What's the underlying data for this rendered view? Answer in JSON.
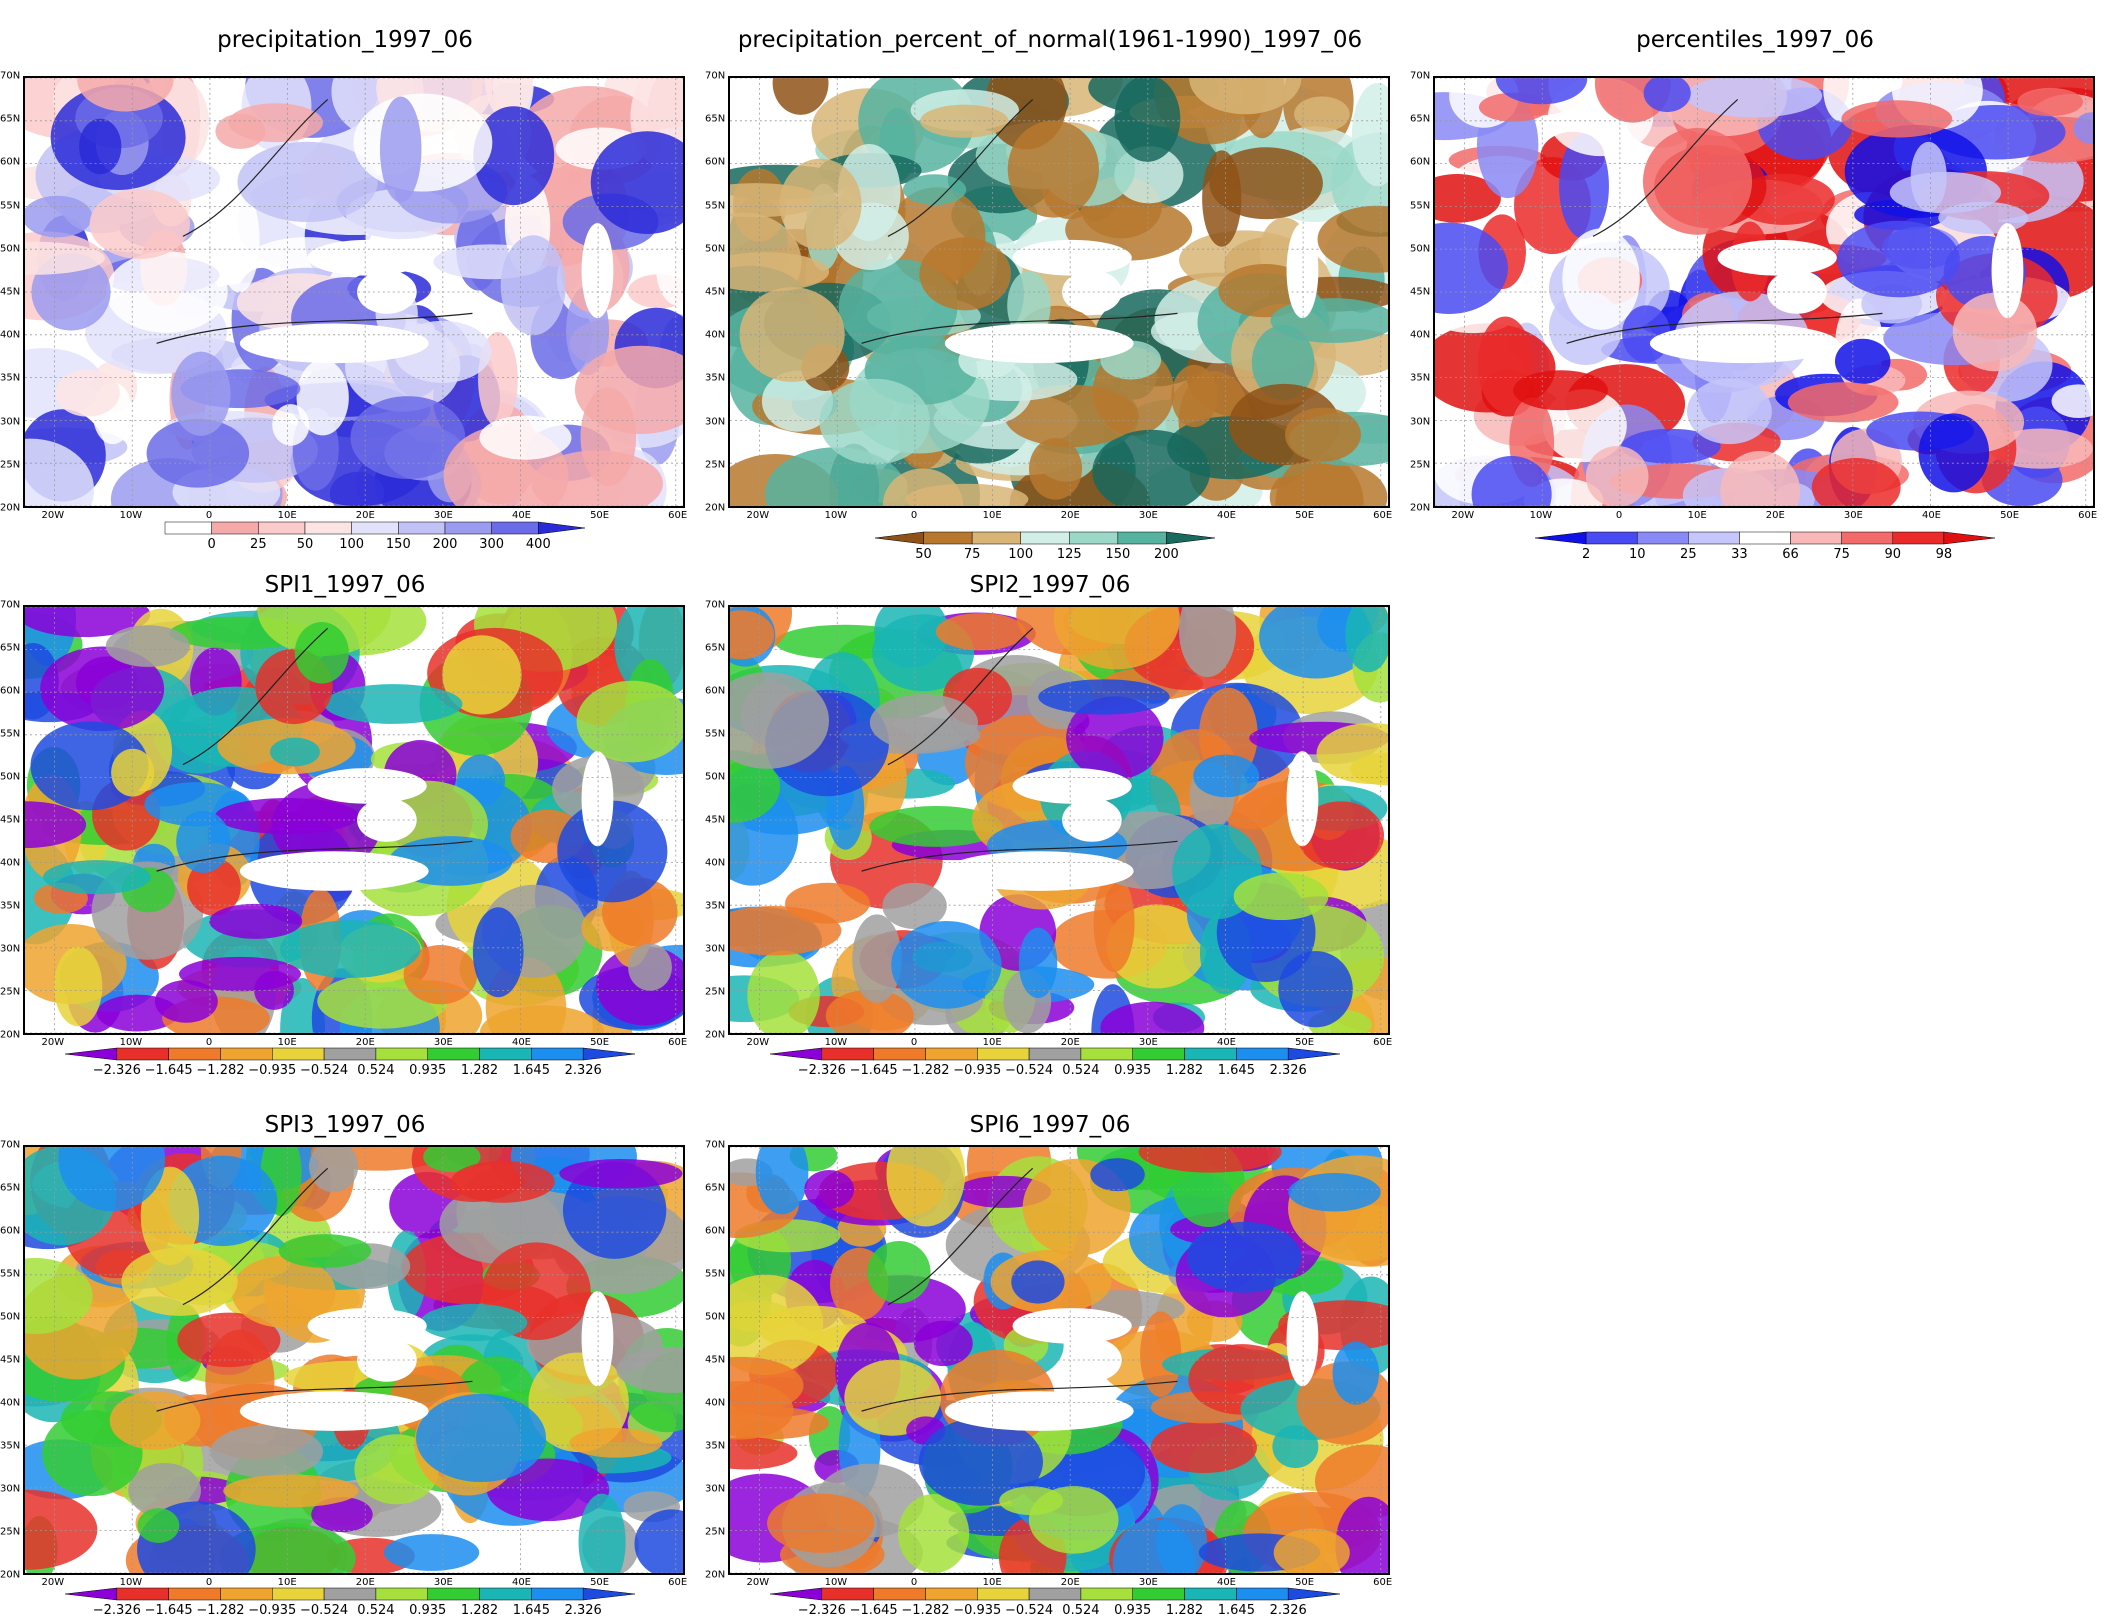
{
  "axes": {
    "lat_labels": [
      "70N",
      "65N",
      "60N",
      "55N",
      "50N",
      "45N",
      "40N",
      "35N",
      "30N",
      "25N",
      "20N"
    ],
    "lon_labels": [
      "20W",
      "10W",
      "0",
      "10E",
      "20E",
      "30E",
      "40E",
      "50E",
      "60E"
    ]
  },
  "palettes": {
    "precip": [
      "#ffffff",
      "#f6a9a9",
      "#fbcaca",
      "#fde4e4",
      "#e2e2fb",
      "#c2c2f6",
      "#9b9bf0",
      "#6b6be8",
      "#2a2ad8"
    ],
    "pct": [
      "#8e5218",
      "#b7782e",
      "#d8b577",
      "#d1efe7",
      "#9bd8c8",
      "#56b3a0",
      "#18695e"
    ],
    "pctile": [
      "#1010e8",
      "#4a4af2",
      "#8a8af6",
      "#c6c6fa",
      "#ffffff",
      "#f8b8b8",
      "#f26a6a",
      "#eb2a2a",
      "#e01010"
    ],
    "spi": [
      "#8b00d8",
      "#e8302a",
      "#ef7a2a",
      "#eea42f",
      "#e8d43a",
      "#a0a0a0",
      "#a6e03c",
      "#33cc33",
      "#1ab5b5",
      "#1c8ef0",
      "#1d4ae0"
    ]
  },
  "panels": [
    {
      "id": "precip",
      "title": "precipitation_1997_06",
      "palette": "precip",
      "legend_labels": [
        "0",
        "25",
        "50",
        "100",
        "150",
        "200",
        "300",
        "400"
      ]
    },
    {
      "id": "pct",
      "title": "precipitation_percent_of_normal(1961-1990)_1997_06",
      "palette": "pct",
      "legend_labels": [
        "50",
        "75",
        "100",
        "125",
        "150",
        "200"
      ]
    },
    {
      "id": "pctile",
      "title": "percentiles_1997_06",
      "palette": "pctile",
      "legend_labels": [
        "2",
        "10",
        "25",
        "33",
        "66",
        "75",
        "90",
        "98"
      ]
    },
    {
      "id": "spi1",
      "title": "SPI1_1997_06",
      "palette": "spi",
      "legend_labels": [
        "−2.326",
        "−1.645",
        "−1.282",
        "−0.935",
        "−0.524",
        "0.524",
        "0.935",
        "1.282",
        "1.645",
        "2.326"
      ]
    },
    {
      "id": "spi2",
      "title": "SPI2_1997_06",
      "palette": "spi",
      "legend_labels": [
        "−2.326",
        "−1.645",
        "−1.282",
        "−0.935",
        "−0.524",
        "0.524",
        "0.935",
        "1.282",
        "1.645",
        "2.326"
      ]
    },
    {
      "id": "spi3",
      "title": "SPI3_1997_06",
      "palette": "spi",
      "legend_labels": [
        "−2.326",
        "−1.645",
        "−1.282",
        "−0.935",
        "−0.524",
        "0.524",
        "0.935",
        "1.282",
        "1.645",
        "2.326"
      ]
    },
    {
      "id": "spi6",
      "title": "SPI6_1997_06",
      "palette": "spi",
      "legend_labels": [
        "−2.326",
        "−1.645",
        "−1.282",
        "−0.935",
        "−0.524",
        "0.524",
        "0.935",
        "1.282",
        "1.645",
        "2.326"
      ]
    }
  ]
}
